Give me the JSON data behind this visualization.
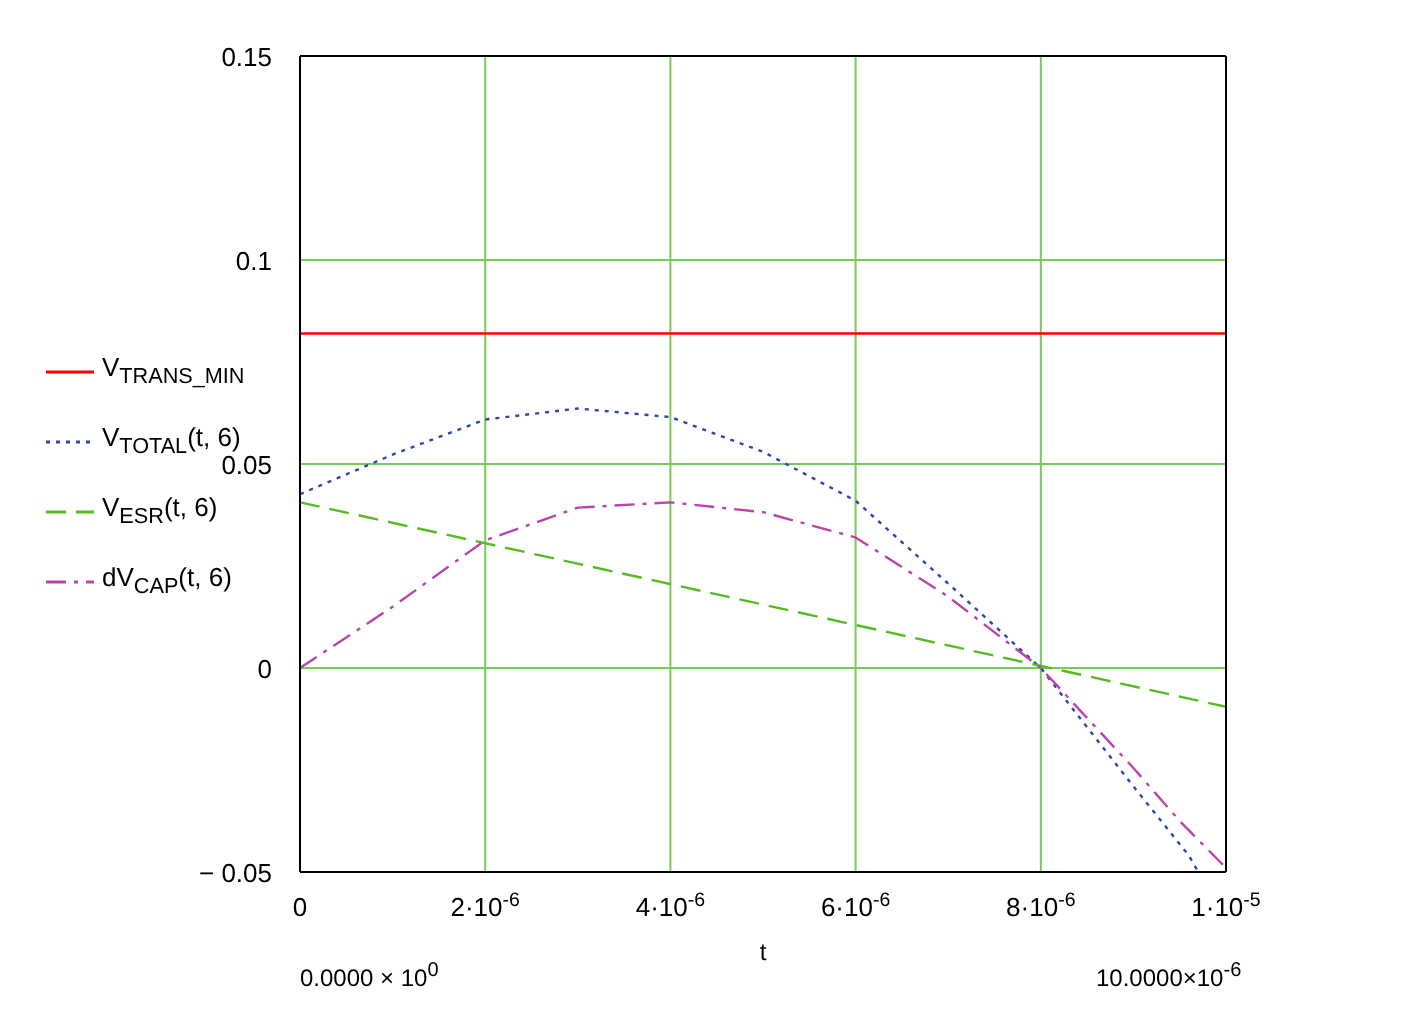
{
  "chart_data": {
    "type": "line",
    "xlabel": "t",
    "annotations": [
      "0.0000 × 10$^{0}$",
      "10.0000×10$^{-6}$"
    ],
    "xlim": [
      0,
      1e-05
    ],
    "xticks": [
      0,
      {
        "value": 2e-06,
        "label": "2·10$^{-6}$"
      },
      {
        "value": 4e-06,
        "label": "4·10$^{-6}$"
      },
      {
        "value": 6e-06,
        "label": "6·10$^{-6}$"
      },
      {
        "value": 8e-06,
        "label": "8·10$^{-6}$"
      },
      {
        "value": 1e-05,
        "label": "1·10$^{-5}$"
      }
    ],
    "ylim": [
      -0.05,
      0.15
    ],
    "yticks": [
      {
        "value": -0.05,
        "label": "− 0.05"
      },
      0,
      0.05,
      0.1,
      0.15
    ],
    "grid": true,
    "legend": "left",
    "series": [
      {
        "name": "V$_{TRANS_MIN}$",
        "color": "#ff0000",
        "line_style": "solid",
        "x": [
          0,
          1e-05
        ],
        "values": [
          0.082,
          0.082
        ]
      },
      {
        "name": "V$_{TOTAL}$(t, 6)",
        "color": "#3344aa",
        "line_style": "dotted",
        "x": [
          0,
          1e-06,
          2e-06,
          3e-06,
          4e-06,
          5e-06,
          6e-06,
          7e-06,
          8e-06,
          9e-06,
          9.6e-06,
          9.7e-06
        ],
        "values": [
          0.0426,
          0.0523,
          0.0609,
          0.0636,
          0.0615,
          0.053,
          0.041,
          0.0207,
          0,
          -0.029,
          -0.046,
          -0.05
        ]
      },
      {
        "name": "V$_{ESR}$(t, 6)",
        "color": "#55bb22",
        "line_style": "dashed",
        "x": [
          0,
          1e-05
        ],
        "values": [
          0.0406,
          -0.0095
        ]
      },
      {
        "name": "dV$_{CAP}$(t, 6)",
        "color": "#bb44aa",
        "line_style": "dashdot",
        "x": [
          0,
          1e-06,
          2e-06,
          3e-06,
          4e-06,
          5e-06,
          6e-06,
          7e-06,
          8e-06,
          9e-06,
          9.5e-06,
          1e-05
        ],
        "values": [
          0,
          0.015,
          0.0313,
          0.0393,
          0.0406,
          0.0382,
          0.032,
          0.0175,
          0,
          -0.0245,
          -0.0375,
          -0.049
        ]
      }
    ]
  }
}
